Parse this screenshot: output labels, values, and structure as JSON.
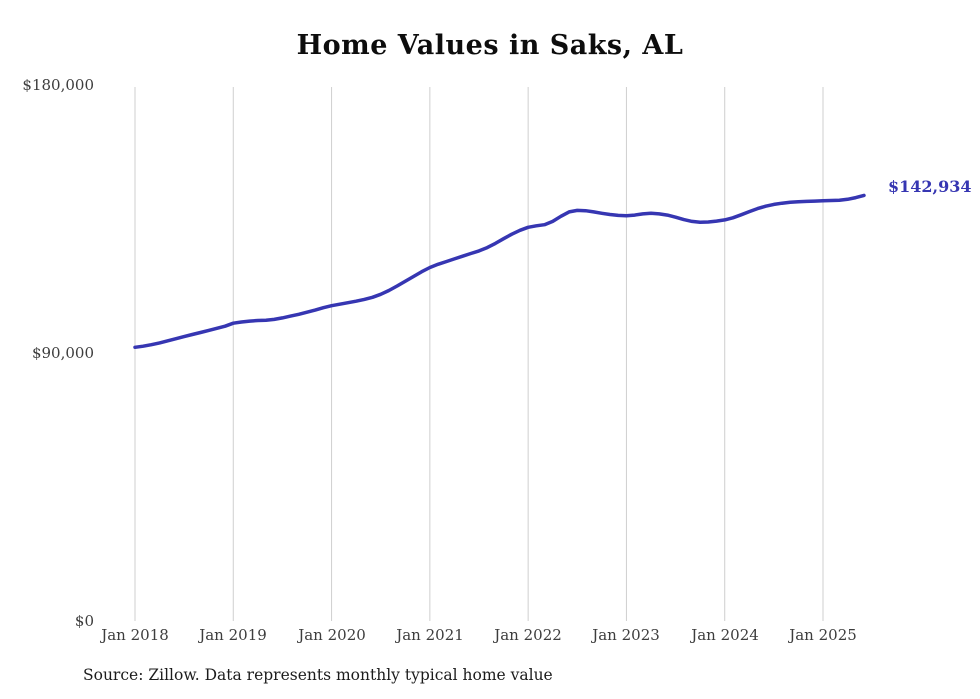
{
  "title": "Home Values in Saks, AL",
  "source_note": "Source: Zillow. Data represents monthly typical home value",
  "end_label": "$142,934",
  "colors": {
    "line": "#3636b2",
    "grid": "#cfcfcf",
    "axis_text": "#3d3d3d",
    "title_text": "#0d0d0d"
  },
  "chart_data": {
    "type": "line",
    "title": "Home Values in Saks, AL",
    "xlabel": "",
    "ylabel": "",
    "ylim": [
      0,
      180000
    ],
    "y_tick_labels": [
      "$180,000",
      "$90,000",
      "$0"
    ],
    "y_tick_values": [
      180000,
      90000,
      0
    ],
    "x_tick_labels": [
      "Jan 2018",
      "Jan 2019",
      "Jan 2020",
      "Jan 2021",
      "Jan 2022",
      "Jan 2023",
      "Jan 2024",
      "Jan 2025"
    ],
    "grid": "vertical-only",
    "legend": "none",
    "x_start_month": "2018-01",
    "x_end_month": "2025-06",
    "series": [
      {
        "name": "Typical home value",
        "latest_value": 142934,
        "latest_value_label": "$142,934",
        "values": [
          91900,
          92300,
          92800,
          93400,
          94100,
          94800,
          95500,
          96200,
          96900,
          97600,
          98300,
          99000,
          100000,
          100400,
          100700,
          100900,
          101000,
          101300,
          101800,
          102400,
          103000,
          103700,
          104400,
          105200,
          105900,
          106400,
          106900,
          107400,
          108000,
          108700,
          109700,
          111000,
          112500,
          114100,
          115700,
          117300,
          118700,
          119800,
          120700,
          121600,
          122500,
          123400,
          124300,
          125400,
          126800,
          128400,
          129900,
          131200,
          132200,
          132700,
          133100,
          134200,
          135900,
          137400,
          137900,
          137800,
          137400,
          136900,
          136500,
          136200,
          136100,
          136300,
          136700,
          136900,
          136700,
          136300,
          135600,
          134800,
          134200,
          133900,
          134000,
          134300,
          134700,
          135400,
          136400,
          137500,
          138500,
          139300,
          139900,
          140300,
          140600,
          140800,
          140900,
          141000,
          141100,
          141200,
          141300,
          141600,
          142200,
          142934
        ]
      }
    ]
  }
}
